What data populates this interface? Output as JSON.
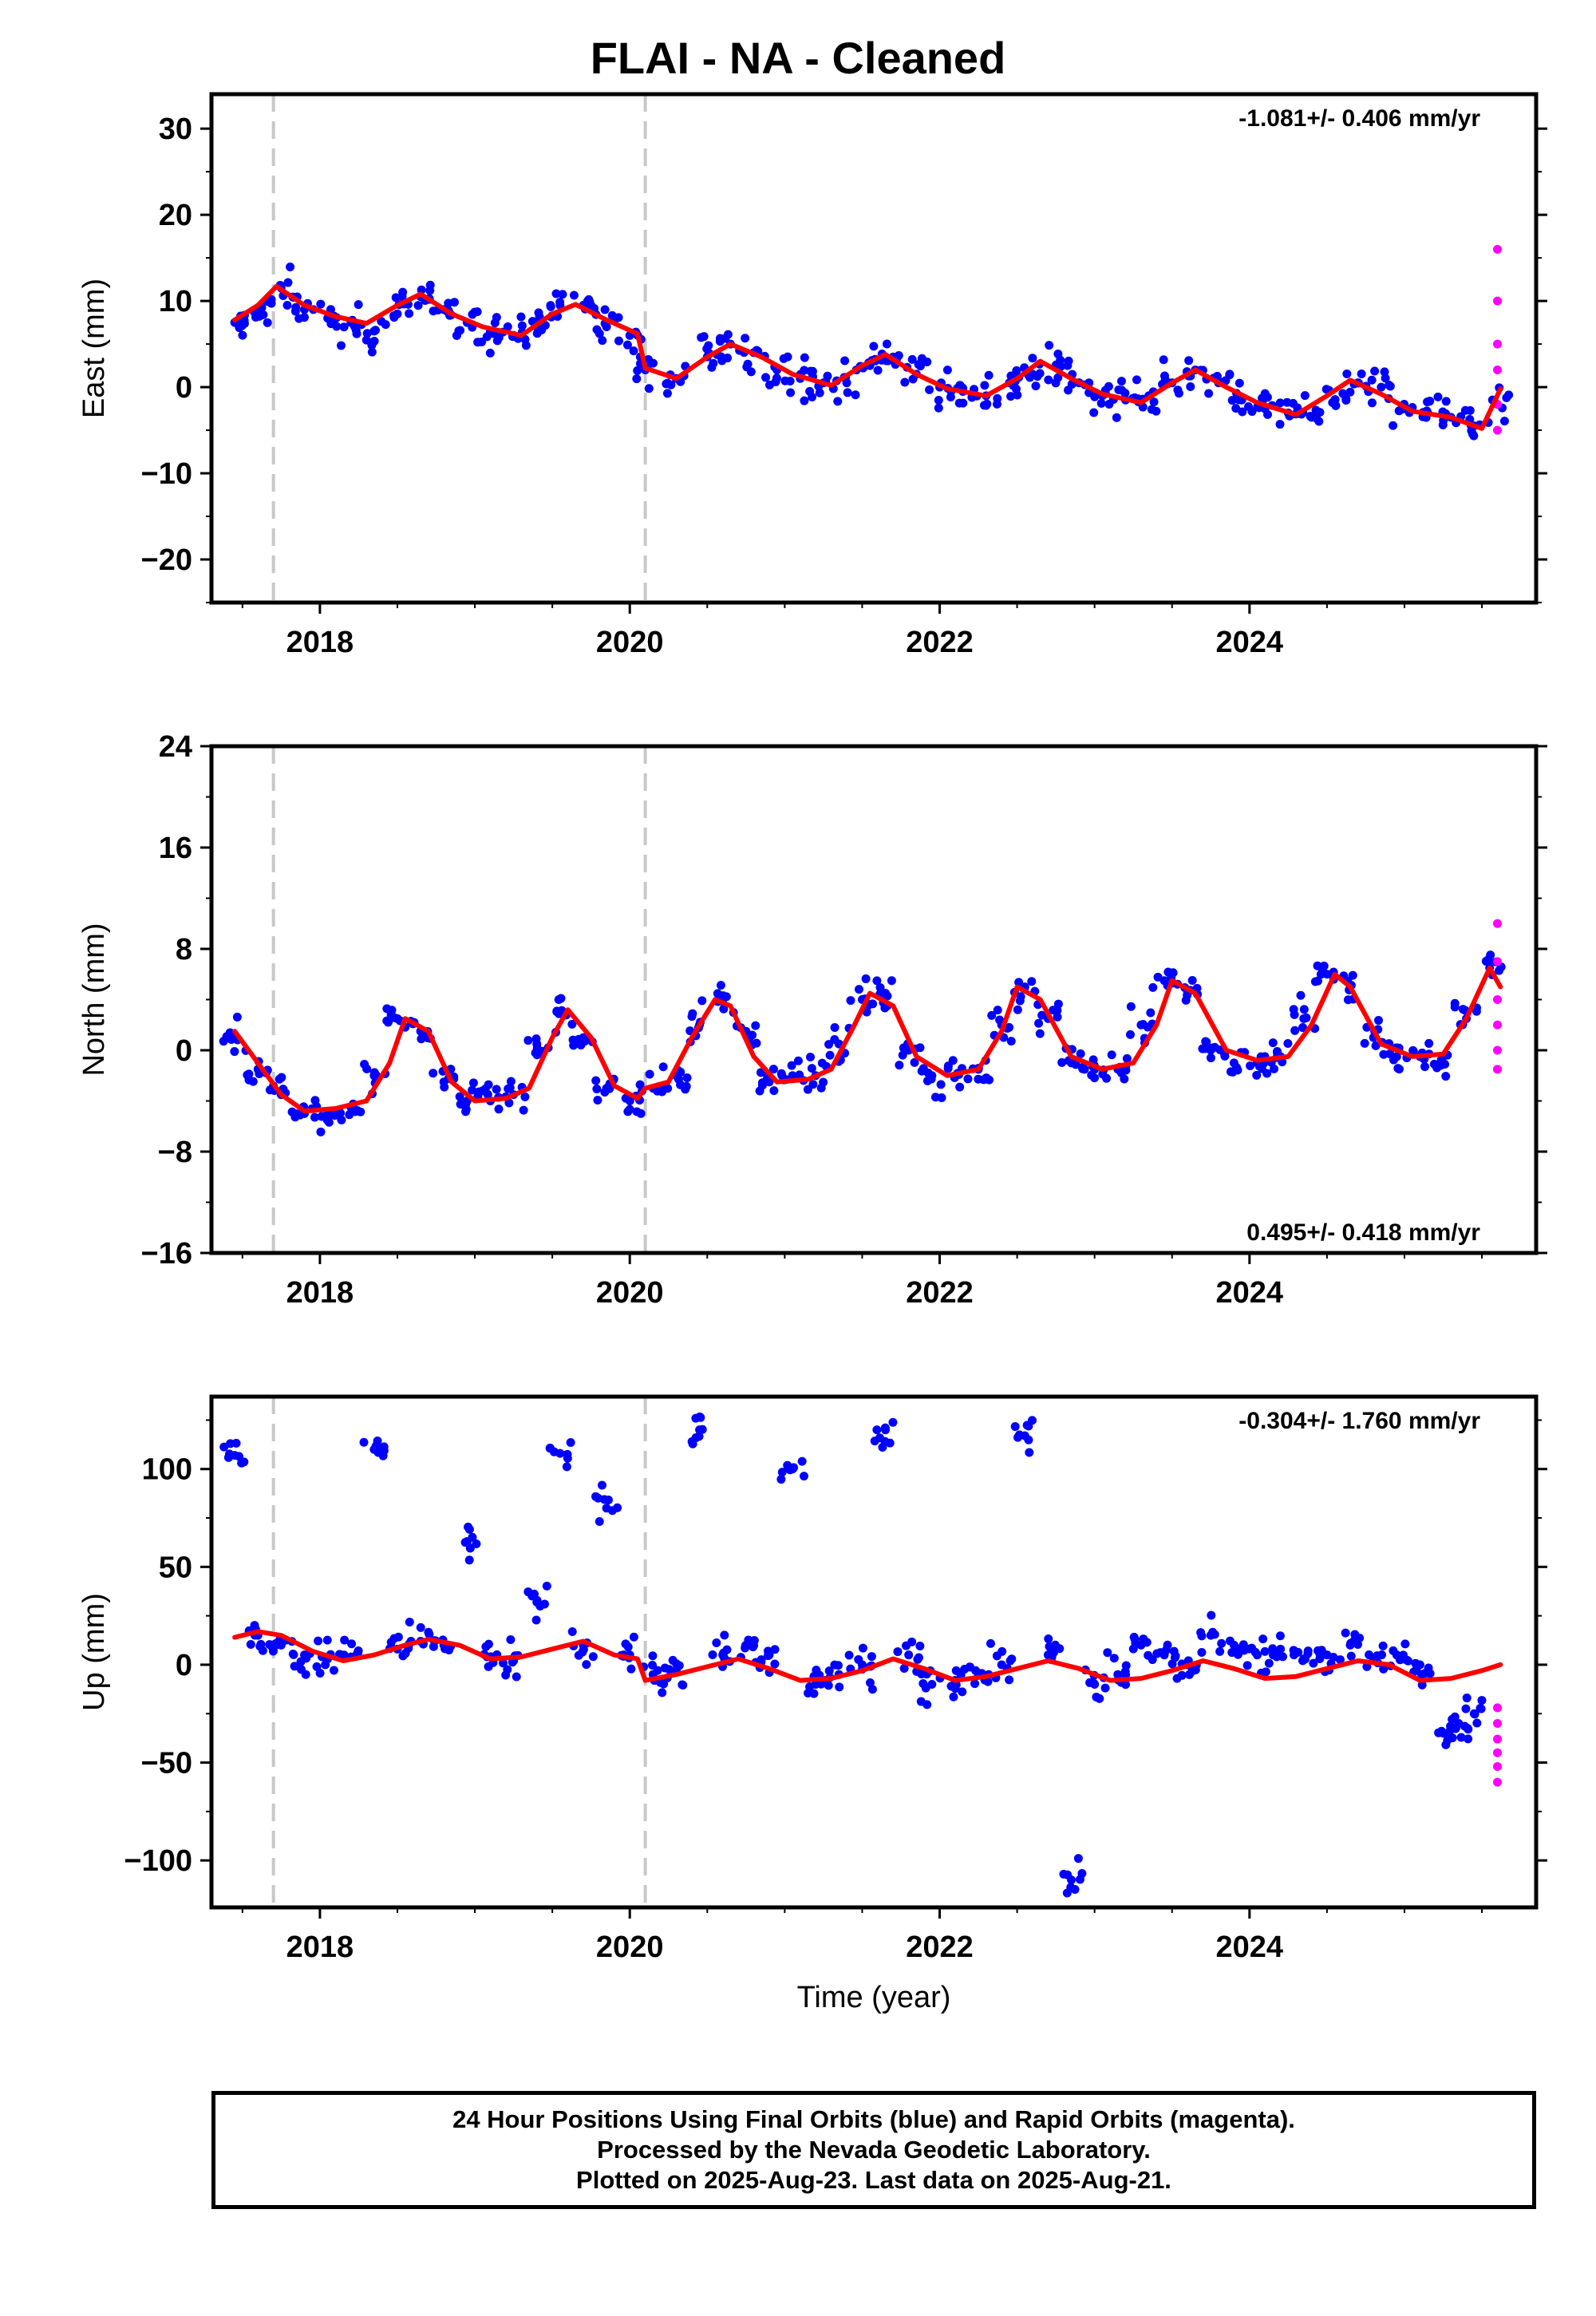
{
  "title": "FLAI  - NA - Cleaned",
  "xlabel": "Time (year)",
  "footer": {
    "line1": "24 Hour Positions Using Final Orbits (blue) and Rapid Orbits (magenta).",
    "line2": "Processed by the Nevada Geodetic Laboratory.",
    "line3": "Plotted on 2025-Aug-23. Last data on 2025-Aug-21."
  },
  "colors": {
    "final": "#0000ff",
    "rapid": "#ff00ff",
    "model": "#ff0000",
    "offset": "#c8c8c8"
  },
  "chart_data": [
    {
      "type": "scatter",
      "ylabel": "East (mm)",
      "rate": "-1.081+/- 0.406 mm/yr",
      "rate_position": "top-right",
      "xlim": [
        2017.3,
        2025.85
      ],
      "ylim": [
        -25,
        34
      ],
      "yticks": [
        -20,
        -10,
        0,
        10,
        20,
        30
      ],
      "xticks": [
        2018,
        2020,
        2022,
        2024
      ],
      "offsets": [
        2017.7,
        2020.1
      ],
      "series": [
        {
          "x": [
            2017.45,
            2017.6,
            2017.75,
            2017.9,
            2018.05,
            2018.2,
            2018.35,
            2018.5,
            2018.65,
            2018.8,
            2018.95,
            2019.1,
            2019.25,
            2019.4,
            2019.55,
            2019.7,
            2019.85,
            2020.0,
            2020.1,
            2020.3,
            2020.5,
            2020.65,
            2020.8,
            2020.95,
            2021.1,
            2021.25,
            2021.4,
            2021.55,
            2021.7,
            2021.85,
            2022.0,
            2022.15,
            2022.3,
            2022.45,
            2022.6,
            2022.75,
            2022.9,
            2023.05,
            2023.2,
            2023.35,
            2023.5,
            2023.65,
            2023.8,
            2023.95,
            2024.1,
            2024.25,
            2024.4,
            2024.55,
            2024.7,
            2024.85,
            2025.0,
            2025.15,
            2025.3,
            2025.45,
            2025.6
          ],
          "y": [
            7.5,
            9.0,
            11.5,
            9.0,
            8.0,
            7.5,
            6.5,
            8.5,
            10.5,
            9.0,
            7.5,
            6.5,
            6.0,
            7.0,
            9.5,
            9.5,
            7.0,
            6.0,
            2.0,
            1.0,
            3.5,
            5.0,
            4.0,
            2.0,
            1.0,
            0.5,
            0.5,
            2.5,
            3.5,
            1.5,
            0.0,
            -0.5,
            -1.0,
            0.5,
            1.5,
            2.5,
            0.5,
            -1.0,
            -1.5,
            -1.0,
            0.5,
            2.0,
            0.5,
            -1.5,
            -2.5,
            -3.0,
            -3.5,
            -1.5,
            0.5,
            0.0,
            -2.5,
            -3.0,
            -3.5,
            -4.5,
            -2.0
          ]
        }
      ],
      "model": {
        "x": [
          2017.45,
          2017.6,
          2017.72,
          2017.9,
          2018.1,
          2018.3,
          2018.5,
          2018.65,
          2018.85,
          2019.05,
          2019.3,
          2019.5,
          2019.65,
          2019.85,
          2020.05,
          2020.1,
          2020.3,
          2020.5,
          2020.65,
          2020.85,
          2021.05,
          2021.3,
          2021.5,
          2021.65,
          2021.85,
          2022.05,
          2022.3,
          2022.5,
          2022.65,
          2022.85,
          2023.05,
          2023.3,
          2023.5,
          2023.65,
          2023.85,
          2024.05,
          2024.3,
          2024.5,
          2024.65,
          2024.85,
          2025.05,
          2025.3,
          2025.5,
          2025.62
        ],
        "y": [
          7.8,
          9.5,
          11.7,
          9.5,
          8.2,
          7.4,
          9.5,
          10.8,
          8.5,
          7.0,
          6.0,
          8.5,
          9.6,
          7.8,
          6.2,
          2.2,
          1.0,
          3.5,
          5.0,
          3.5,
          1.5,
          0.2,
          2.5,
          3.8,
          1.5,
          -0.2,
          -1.0,
          1.0,
          3.0,
          1.0,
          -0.8,
          -1.8,
          0.5,
          2.0,
          0.0,
          -1.8,
          -3.2,
          -1.0,
          0.8,
          -0.8,
          -2.8,
          -3.5,
          -4.8,
          -0.2
        ]
      },
      "rapid": {
        "x": [
          2025.6,
          2025.6,
          2025.6,
          2025.6,
          2025.6,
          2025.6
        ],
        "y": [
          16,
          10,
          5,
          2,
          -2,
          -5
        ]
      }
    },
    {
      "type": "scatter",
      "ylabel": "North (mm)",
      "rate": "0.495+/- 0.418 mm/yr",
      "rate_position": "bottom-right",
      "xlim": [
        2017.3,
        2025.85
      ],
      "ylim": [
        -16,
        24
      ],
      "yticks": [
        -16,
        -8,
        0,
        8,
        16,
        24
      ],
      "xticks": [
        2018,
        2020,
        2022,
        2024
      ],
      "offsets": [
        2017.7,
        2020.1
      ],
      "series": [
        {
          "x": [
            2017.45,
            2017.6,
            2017.75,
            2017.9,
            2018.05,
            2018.2,
            2018.35,
            2018.5,
            2018.65,
            2018.8,
            2018.95,
            2019.1,
            2019.25,
            2019.4,
            2019.55,
            2019.7,
            2019.85,
            2020.0,
            2020.15,
            2020.3,
            2020.45,
            2020.6,
            2020.75,
            2020.9,
            2021.05,
            2021.2,
            2021.35,
            2021.5,
            2021.65,
            2021.8,
            2021.95,
            2022.1,
            2022.25,
            2022.4,
            2022.55,
            2022.7,
            2022.85,
            2023.0,
            2023.15,
            2023.3,
            2023.45,
            2023.6,
            2023.75,
            2023.9,
            2024.05,
            2024.2,
            2024.35,
            2024.5,
            2024.65,
            2024.8,
            2024.95,
            2025.1,
            2025.25,
            2025.4,
            2025.55
          ],
          "y": [
            1.0,
            -1.5,
            -3.5,
            -5.0,
            -5.0,
            -4.5,
            -2.0,
            2.5,
            1.5,
            -2.5,
            -4.0,
            -4.0,
            -3.5,
            0.5,
            3.0,
            1.0,
            -3.0,
            -4.0,
            -3.0,
            -2.0,
            2.0,
            4.0,
            1.5,
            -2.5,
            -2.0,
            -2.0,
            0.5,
            4.0,
            4.5,
            0.0,
            -2.0,
            -2.0,
            -1.5,
            2.0,
            5.0,
            2.5,
            -1.0,
            -1.5,
            -1.5,
            2.0,
            5.5,
            4.5,
            0.0,
            -1.0,
            -1.0,
            -0.5,
            2.5,
            6.0,
            5.0,
            1.0,
            -0.5,
            -0.5,
            -0.5,
            2.5,
            6.5
          ]
        }
      ],
      "model": {
        "x": [
          2017.45,
          2017.6,
          2017.75,
          2017.9,
          2018.1,
          2018.3,
          2018.45,
          2018.55,
          2018.7,
          2018.85,
          2019.0,
          2019.2,
          2019.35,
          2019.5,
          2019.6,
          2019.75,
          2019.9,
          2020.05,
          2020.1,
          2020.25,
          2020.4,
          2020.55,
          2020.65,
          2020.8,
          2020.95,
          2021.15,
          2021.3,
          2021.45,
          2021.55,
          2021.7,
          2021.85,
          2022.05,
          2022.25,
          2022.4,
          2022.5,
          2022.65,
          2022.85,
          2023.05,
          2023.25,
          2023.4,
          2023.5,
          2023.65,
          2023.85,
          2024.05,
          2024.25,
          2024.4,
          2024.55,
          2024.65,
          2024.85,
          2025.05,
          2025.25,
          2025.4,
          2025.55,
          2025.62
        ],
        "y": [
          1.5,
          -1.0,
          -3.5,
          -4.8,
          -4.6,
          -4.0,
          -1.0,
          2.5,
          1.5,
          -2.5,
          -4.0,
          -3.8,
          -3.0,
          1.0,
          3.2,
          1.0,
          -2.8,
          -3.8,
          -3.0,
          -2.5,
          1.0,
          4.0,
          3.5,
          -0.5,
          -2.5,
          -2.3,
          -1.5,
          2.0,
          4.5,
          3.5,
          -0.5,
          -2.0,
          -1.5,
          1.5,
          5.0,
          4.0,
          -0.5,
          -1.5,
          -1.0,
          2.0,
          5.5,
          4.5,
          0.0,
          -0.8,
          -0.5,
          2.0,
          6.0,
          5.0,
          0.5,
          -0.5,
          -0.3,
          2.5,
          6.5,
          5.0
        ]
      },
      "rapid": {
        "x": [
          2025.6,
          2025.6,
          2025.6,
          2025.6,
          2025.6,
          2025.6
        ],
        "y": [
          10,
          7,
          4,
          2,
          0,
          -1.5
        ]
      }
    },
    {
      "type": "scatter",
      "ylabel": "Up (mm)",
      "rate": "-0.304+/- 1.760 mm/yr",
      "rate_position": "top-right",
      "xlim": [
        2017.3,
        2025.85
      ],
      "ylim": [
        -124,
        137
      ],
      "yticks": [
        -100,
        -50,
        0,
        50,
        100
      ],
      "xticks": [
        2018,
        2020,
        2022,
        2024
      ],
      "offsets": [
        2017.7,
        2020.1
      ],
      "series": [
        {
          "x": [
            2017.45,
            2017.6,
            2017.75,
            2017.9,
            2018.05,
            2018.2,
            2018.35,
            2018.5,
            2018.65,
            2018.8,
            2018.95,
            2019.1,
            2019.25,
            2019.4,
            2019.55,
            2019.7,
            2019.85,
            2020.0,
            2020.15,
            2020.3,
            2020.45,
            2020.6,
            2020.75,
            2020.9,
            2021.05,
            2021.2,
            2021.35,
            2021.5,
            2021.65,
            2021.8,
            2021.95,
            2022.1,
            2022.25,
            2022.4,
            2022.55,
            2022.7,
            2022.85,
            2023.0,
            2023.15,
            2023.3,
            2023.45,
            2023.6,
            2023.75,
            2023.9,
            2024.05,
            2024.2,
            2024.35,
            2024.5,
            2024.65,
            2024.8,
            2024.95,
            2025.1,
            2025.25,
            2025.35,
            2025.45
          ],
          "y": [
            107,
            15,
            10,
            5,
            3,
            4,
            110,
            8,
            12,
            10,
            63,
            4,
            2,
            32,
            108,
            10,
            80,
            5,
            -5,
            -3,
            120,
            5,
            10,
            5,
            100,
            -10,
            -5,
            0,
            120,
            5,
            -10,
            -8,
            -5,
            0,
            117,
            5,
            -110,
            -10,
            -5,
            10,
            5,
            0,
            15,
            10,
            5,
            8,
            3,
            5,
            10,
            3,
            5,
            0,
            -35,
            -30,
            -25
          ]
        }
      ],
      "model": {
        "x": [
          2017.45,
          2017.6,
          2017.75,
          2017.95,
          2018.15,
          2018.35,
          2018.55,
          2018.7,
          2018.9,
          2019.1,
          2019.3,
          2019.5,
          2019.7,
          2019.9,
          2020.05,
          2020.1,
          2020.3,
          2020.5,
          2020.7,
          2020.9,
          2021.1,
          2021.3,
          2021.5,
          2021.7,
          2021.9,
          2022.1,
          2022.3,
          2022.5,
          2022.7,
          2022.9,
          2023.1,
          2023.3,
          2023.5,
          2023.7,
          2023.9,
          2024.1,
          2024.3,
          2024.5,
          2024.7,
          2024.9,
          2025.1,
          2025.3,
          2025.5,
          2025.62
        ],
        "y": [
          14,
          17,
          15,
          7,
          2,
          5,
          10,
          13,
          10,
          3,
          4,
          8,
          12,
          5,
          3,
          -8,
          -5,
          -1,
          3,
          -2,
          -8,
          -7,
          -3,
          3,
          -2,
          -8,
          -6,
          -2,
          2,
          -2,
          -8,
          -7,
          -3,
          2,
          -2,
          -7,
          -6,
          -2,
          2,
          0,
          -8,
          -7,
          -3,
          0
        ]
      },
      "rapid": {
        "x": [
          2025.6,
          2025.6,
          2025.6,
          2025.6,
          2025.6,
          2025.6
        ],
        "y": [
          -22,
          -30,
          -38,
          -45,
          -52,
          -60
        ]
      }
    }
  ]
}
